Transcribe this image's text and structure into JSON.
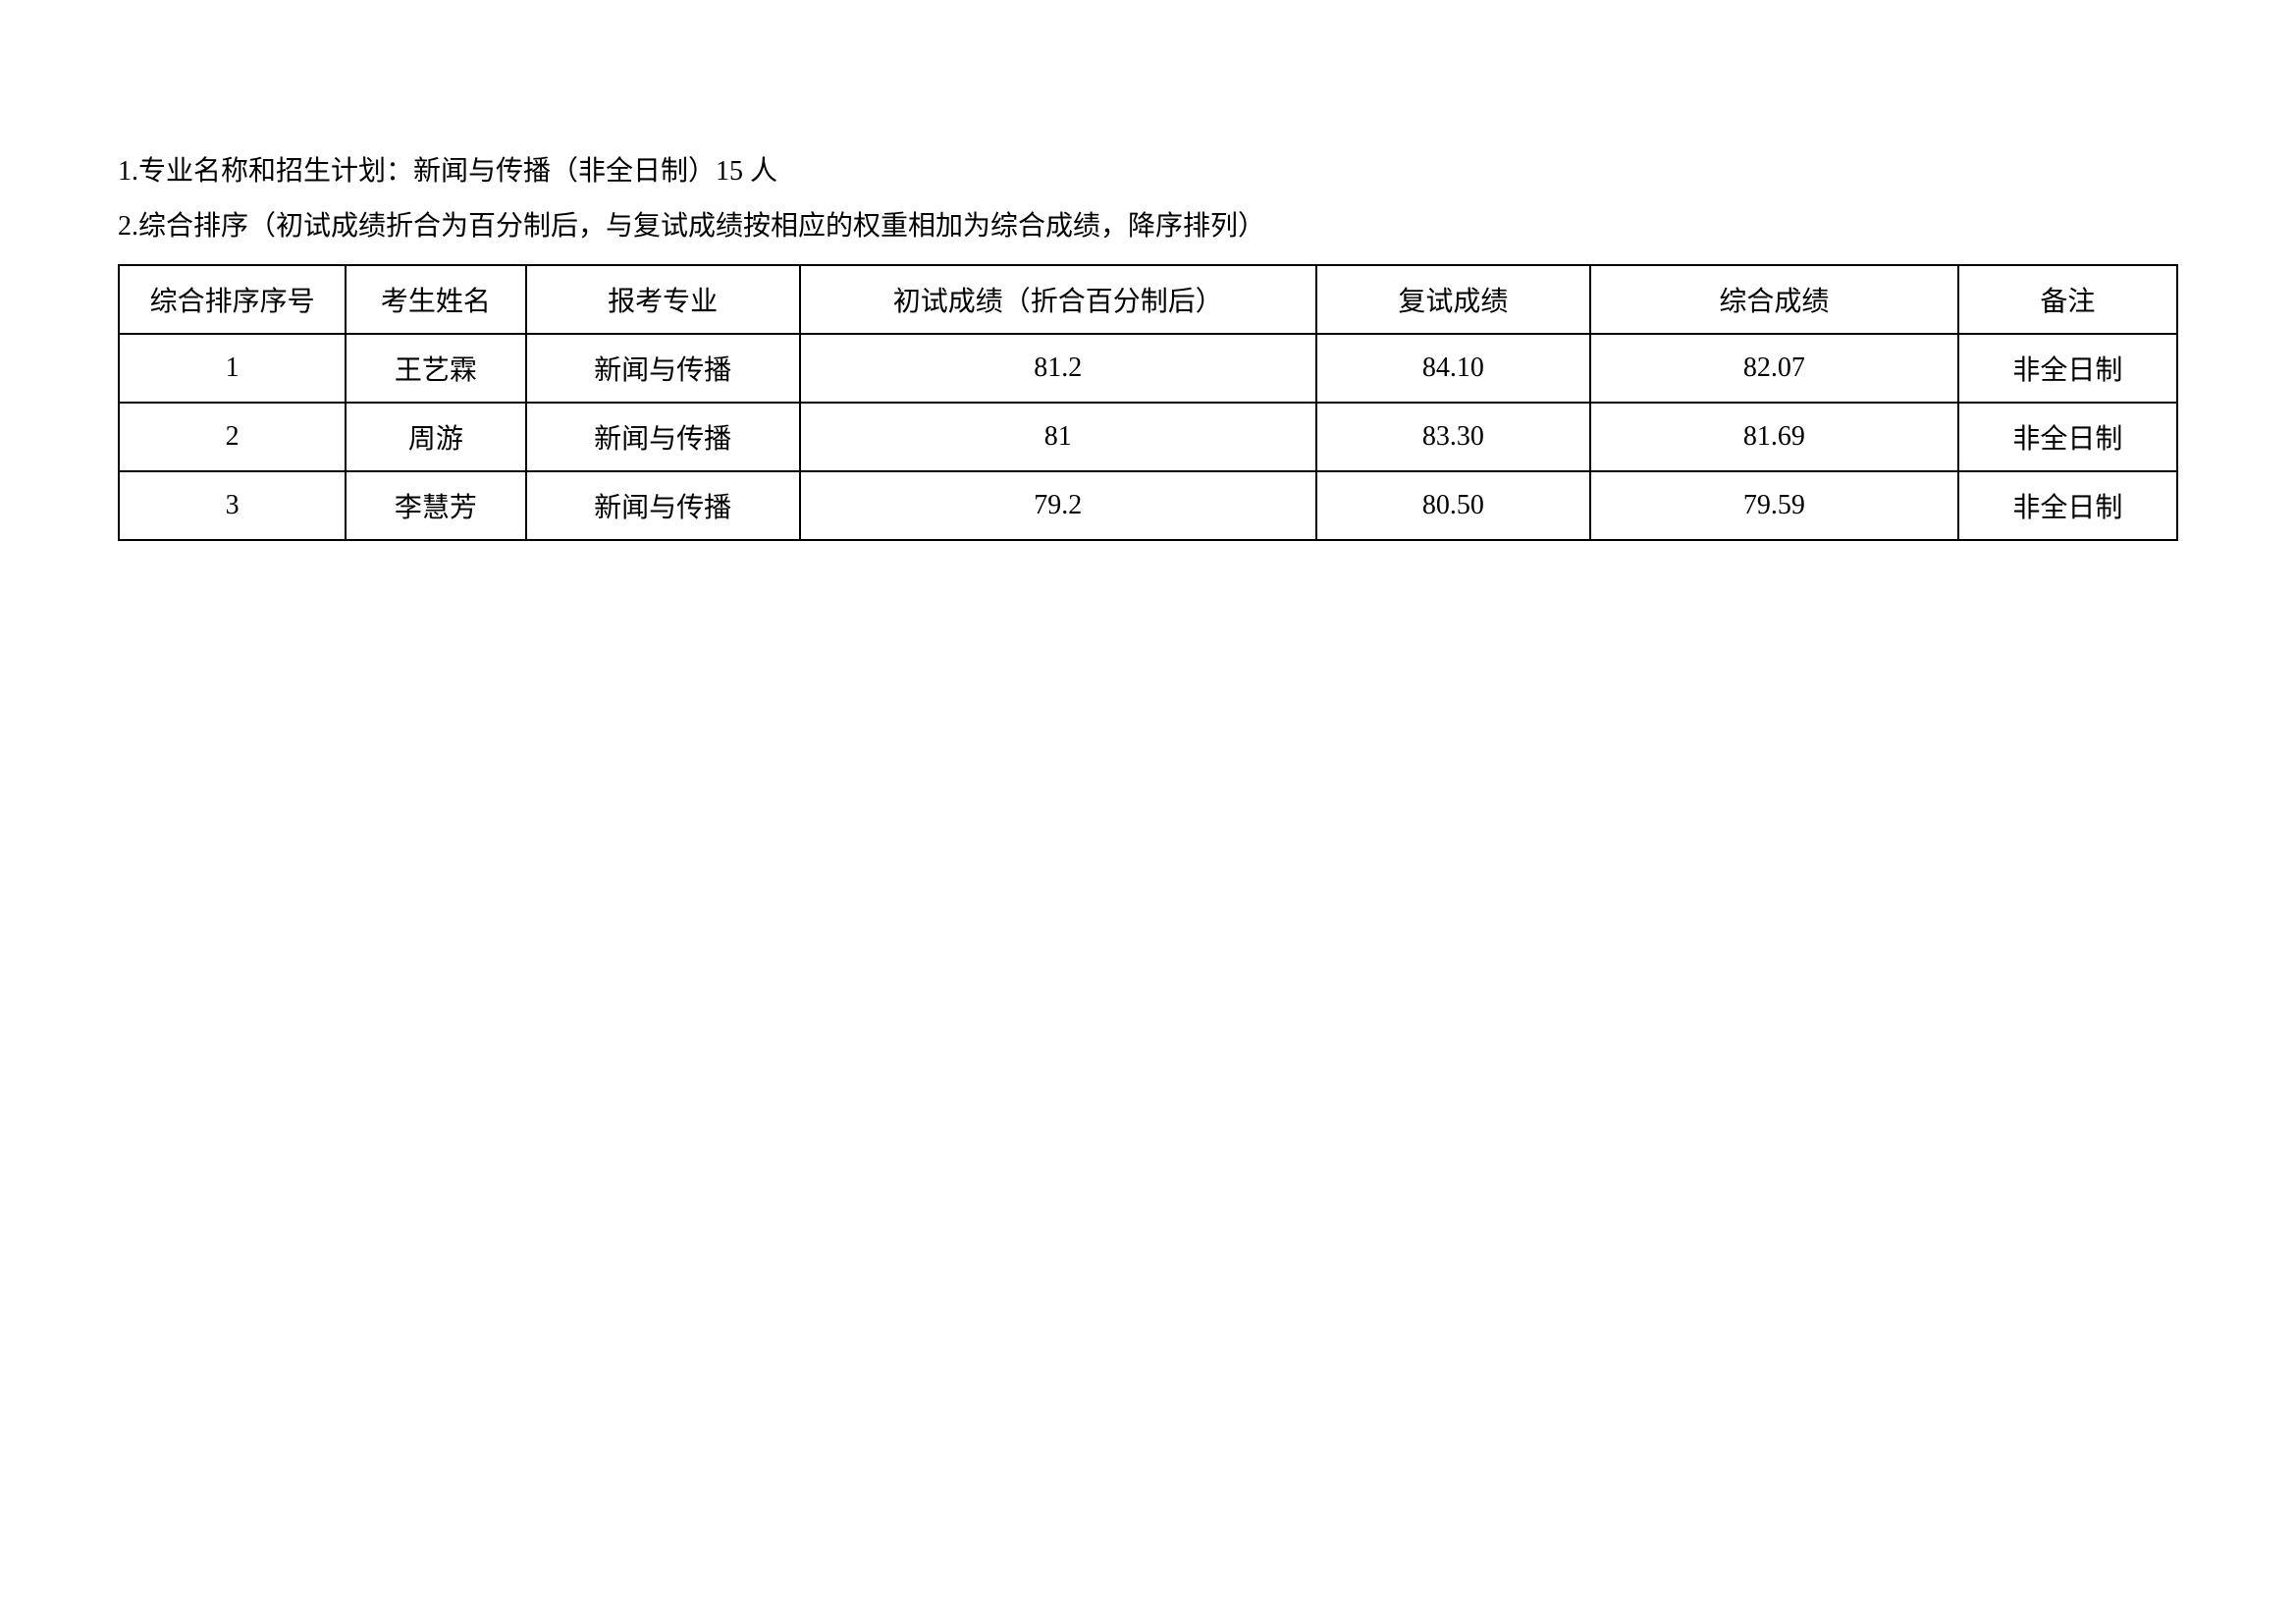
{
  "description": {
    "line1": "1.专业名称和招生计划：新闻与传播（非全日制）15 人",
    "line2": "2.综合排序（初试成绩折合为百分制后，与复试成绩按相应的权重相加为综合成绩，降序排列）"
  },
  "table": {
    "headers": {
      "rank": "综合排序序号",
      "name": "考生姓名",
      "major": "报考专业",
      "prelim": "初试成绩（折合百分制后）",
      "retest": "复试成绩",
      "overall": "综合成绩",
      "note": "备注"
    },
    "rows": [
      {
        "rank": "1",
        "name": "王艺霖",
        "major": "新闻与传播",
        "prelim": "81.2",
        "retest": "84.10",
        "overall": "82.07",
        "note": "非全日制"
      },
      {
        "rank": "2",
        "name": "周游",
        "major": "新闻与传播",
        "prelim": "81",
        "retest": "83.30",
        "overall": "81.69",
        "note": "非全日制"
      },
      {
        "rank": "3",
        "name": "李慧芳",
        "major": "新闻与传播",
        "prelim": "79.2",
        "retest": "80.50",
        "overall": "79.59",
        "note": "非全日制"
      }
    ]
  }
}
